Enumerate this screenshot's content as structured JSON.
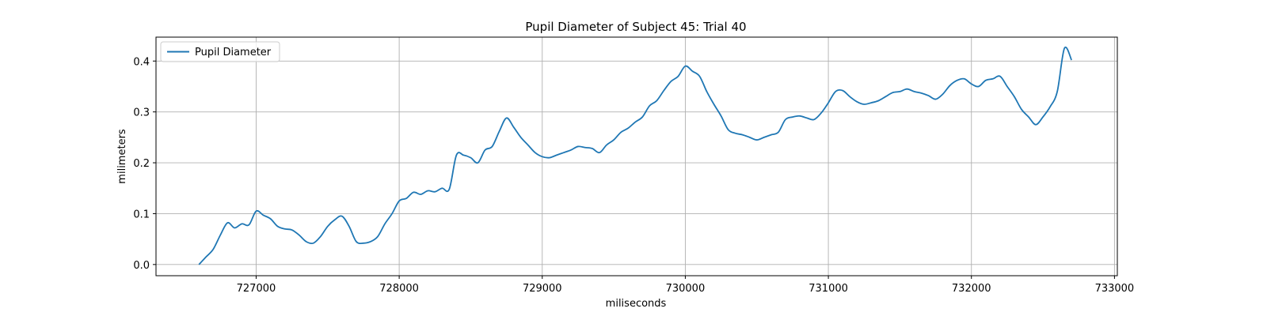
{
  "chart_data": {
    "type": "line",
    "title": "Pupil Diameter of Subject 45: Trial 40",
    "xlabel": "miliseconds",
    "ylabel": "milimeters",
    "xlim": [
      726300,
      733020
    ],
    "ylim": [
      -0.022,
      0.447
    ],
    "xticks": [
      727000,
      728000,
      729000,
      730000,
      731000,
      732000,
      733000
    ],
    "yticks": [
      0.0,
      0.1,
      0.2,
      0.3,
      0.4
    ],
    "xtick_labels": [
      "727000",
      "728000",
      "729000",
      "730000",
      "731000",
      "732000",
      "733000"
    ],
    "ytick_labels": [
      "0.0",
      "0.1",
      "0.2",
      "0.3",
      "0.4"
    ],
    "grid": true,
    "legend": {
      "placement": "upper-left",
      "entries": [
        "Pupil Diameter"
      ]
    },
    "series": [
      {
        "name": "Pupil Diameter",
        "color": "#1f77b4",
        "x": [
          726600,
          726650,
          726700,
          726750,
          726800,
          726850,
          726900,
          726950,
          727000,
          727050,
          727100,
          727150,
          727200,
          727250,
          727300,
          727350,
          727400,
          727450,
          727500,
          727550,
          727600,
          727650,
          727700,
          727750,
          727800,
          727850,
          727900,
          727950,
          728000,
          728050,
          728100,
          728150,
          728200,
          728250,
          728300,
          728350,
          728400,
          728450,
          728500,
          728550,
          728600,
          728650,
          728700,
          728750,
          728800,
          728850,
          728900,
          728950,
          729000,
          729050,
          729100,
          729150,
          729200,
          729250,
          729300,
          729350,
          729400,
          729450,
          729500,
          729550,
          729600,
          729650,
          729700,
          729750,
          729800,
          729850,
          729900,
          729950,
          730000,
          730050,
          730100,
          730150,
          730200,
          730250,
          730300,
          730350,
          730400,
          730450,
          730500,
          730550,
          730600,
          730650,
          730700,
          730750,
          730800,
          730850,
          730900,
          730950,
          731000,
          731050,
          731100,
          731150,
          731200,
          731250,
          731300,
          731350,
          731400,
          731450,
          731500,
          731550,
          731600,
          731650,
          731700,
          731750,
          731800,
          731850,
          731900,
          731950,
          732000,
          732050,
          732100,
          732150,
          732200,
          732250,
          732300,
          732350,
          732400,
          732450,
          732500,
          732550,
          732600,
          732650,
          732700
        ],
        "y": [
          0.0,
          0.015,
          0.03,
          0.058,
          0.082,
          0.072,
          0.08,
          0.078,
          0.105,
          0.097,
          0.09,
          0.075,
          0.07,
          0.068,
          0.058,
          0.045,
          0.042,
          0.055,
          0.075,
          0.088,
          0.095,
          0.075,
          0.045,
          0.042,
          0.045,
          0.055,
          0.08,
          0.1,
          0.125,
          0.13,
          0.142,
          0.138,
          0.145,
          0.143,
          0.15,
          0.148,
          0.215,
          0.215,
          0.21,
          0.2,
          0.225,
          0.232,
          0.262,
          0.288,
          0.27,
          0.25,
          0.235,
          0.22,
          0.212,
          0.21,
          0.215,
          0.22,
          0.225,
          0.232,
          0.23,
          0.228,
          0.22,
          0.235,
          0.245,
          0.26,
          0.268,
          0.28,
          0.29,
          0.312,
          0.322,
          0.342,
          0.36,
          0.37,
          0.39,
          0.38,
          0.37,
          0.34,
          0.315,
          0.292,
          0.265,
          0.258,
          0.255,
          0.25,
          0.245,
          0.25,
          0.255,
          0.26,
          0.285,
          0.29,
          0.292,
          0.288,
          0.285,
          0.298,
          0.318,
          0.34,
          0.342,
          0.33,
          0.32,
          0.315,
          0.318,
          0.322,
          0.33,
          0.338,
          0.34,
          0.345,
          0.34,
          0.337,
          0.332,
          0.325,
          0.335,
          0.352,
          0.362,
          0.365,
          0.355,
          0.35,
          0.362,
          0.365,
          0.37,
          0.35,
          0.33,
          0.305,
          0.29,
          0.275,
          0.29,
          0.31,
          0.34,
          0.425,
          0.402
        ]
      }
    ]
  }
}
